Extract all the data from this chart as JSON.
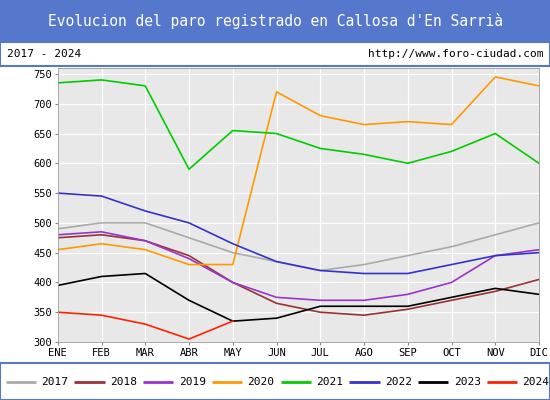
{
  "title": "Evolucion del paro registrado en Callosa d'En Sarrià",
  "subtitle_left": "2017 - 2024",
  "subtitle_right": "http://www.foro-ciudad.com",
  "xlabel_months": [
    "ENE",
    "FEB",
    "MAR",
    "ABR",
    "MAY",
    "JUN",
    "JUL",
    "AGO",
    "SEP",
    "OCT",
    "NOV",
    "DIC"
  ],
  "ylim": [
    300,
    760
  ],
  "yticks": [
    300,
    350,
    400,
    450,
    500,
    550,
    600,
    650,
    700,
    750
  ],
  "series": {
    "2017": {
      "color": "#aaaaaa",
      "data": [
        490,
        500,
        500,
        475,
        450,
        435,
        420,
        430,
        445,
        460,
        480,
        500
      ]
    },
    "2018": {
      "color": "#993333",
      "data": [
        475,
        480,
        470,
        445,
        400,
        365,
        350,
        345,
        355,
        370,
        385,
        405
      ]
    },
    "2019": {
      "color": "#9933cc",
      "data": [
        480,
        485,
        470,
        440,
        400,
        375,
        370,
        370,
        380,
        400,
        445,
        455
      ]
    },
    "2020": {
      "color": "#ff9900",
      "data": [
        455,
        465,
        455,
        430,
        430,
        720,
        680,
        665,
        670,
        665,
        745,
        730
      ]
    },
    "2021": {
      "color": "#00cc00",
      "data": [
        735,
        740,
        730,
        590,
        655,
        650,
        625,
        615,
        600,
        620,
        650,
        600
      ]
    },
    "2022": {
      "color": "#3333cc",
      "data": [
        550,
        545,
        520,
        500,
        465,
        435,
        420,
        415,
        415,
        430,
        445,
        450
      ]
    },
    "2023": {
      "color": "#000000",
      "data": [
        395,
        410,
        415,
        370,
        335,
        340,
        360,
        360,
        360,
        375,
        390,
        380
      ]
    },
    "2024": {
      "color": "#ff2200",
      "data": [
        350,
        345,
        330,
        305,
        335,
        null,
        null,
        null,
        null,
        null,
        null,
        null
      ]
    }
  },
  "title_bg_color": "#5577cc",
  "title_text_color": "#ffffff",
  "plot_bg_color": "#e8e8e8",
  "grid_color": "#ffffff",
  "border_color": "#5577cc",
  "fig_width": 5.5,
  "fig_height": 4.0,
  "dpi": 100
}
